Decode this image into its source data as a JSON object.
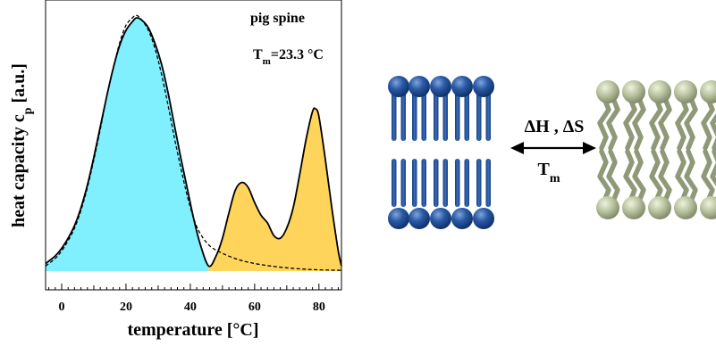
{
  "chart_data": {
    "type": "area",
    "xlabel": "temperature [°C]",
    "ylabel": "heat capacity c",
    "ylabel_sub": "p",
    "ylabel_unit": " [a.u.]",
    "xlim": [
      -5,
      87
    ],
    "x_ticks": [
      0,
      20,
      40,
      60,
      80
    ],
    "grid": false,
    "annotations": {
      "sample": "pig spine",
      "tm_main": "T",
      "tm_sub": "m",
      "tm_value": "=23.3 °C"
    },
    "fill_colors": {
      "low": "#80F0FF",
      "high": "#FFD45A"
    },
    "fill_split_x": 45.7,
    "series": [
      {
        "style": "solid",
        "x": [
          -5,
          -2,
          0,
          2,
          4,
          6,
          8,
          10,
          12,
          14,
          16,
          18,
          20,
          22,
          23.3,
          25,
          27,
          29,
          31,
          33,
          35,
          37,
          39,
          41,
          43,
          45.7,
          48,
          50,
          52,
          54,
          56,
          58,
          60,
          62,
          64,
          66,
          68,
          70,
          72,
          74,
          76,
          78,
          79,
          80,
          82,
          84,
          86,
          87
        ],
        "y": [
          0.03,
          0.06,
          0.09,
          0.13,
          0.18,
          0.25,
          0.34,
          0.45,
          0.57,
          0.69,
          0.8,
          0.89,
          0.95,
          0.985,
          1.0,
          0.99,
          0.96,
          0.9,
          0.82,
          0.71,
          0.58,
          0.45,
          0.33,
          0.21,
          0.11,
          0.02,
          0.06,
          0.13,
          0.23,
          0.32,
          0.35,
          0.33,
          0.27,
          0.22,
          0.19,
          0.14,
          0.13,
          0.17,
          0.25,
          0.38,
          0.52,
          0.63,
          0.64,
          0.61,
          0.44,
          0.25,
          0.08,
          0.02
        ]
      },
      {
        "style": "dashed",
        "x": [
          -5,
          -2,
          0,
          2,
          4,
          6,
          8,
          10,
          12,
          14,
          16,
          18,
          20,
          22,
          23.3,
          25,
          27,
          29,
          31,
          33,
          35,
          37,
          39,
          41,
          43,
          46,
          50,
          55,
          60,
          65,
          70,
          75,
          80,
          87
        ],
        "y": [
          0.02,
          0.05,
          0.08,
          0.12,
          0.17,
          0.24,
          0.33,
          0.44,
          0.56,
          0.69,
          0.8,
          0.9,
          0.97,
          1.0,
          1.01,
          0.99,
          0.95,
          0.88,
          0.78,
          0.66,
          0.53,
          0.41,
          0.3,
          0.21,
          0.15,
          0.1,
          0.07,
          0.045,
          0.03,
          0.02,
          0.013,
          0.008,
          0.005,
          0.003
        ]
      }
    ]
  },
  "diagram": {
    "arrow_top_label": "ΔH , ΔS",
    "arrow_bottom_main": "T",
    "arrow_bottom_sub": "m",
    "gel_color": "#1E4E96",
    "fluid_color": "#B4BE9C"
  }
}
